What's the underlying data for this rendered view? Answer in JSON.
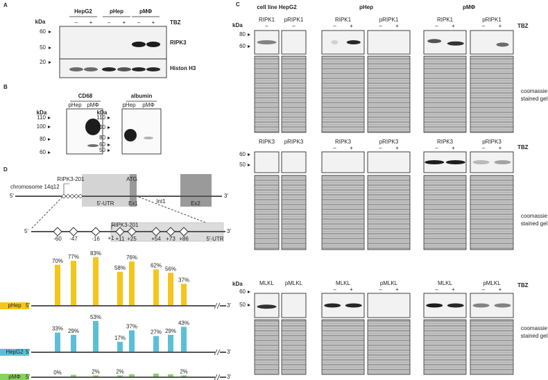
{
  "panel_a": {
    "label": "A",
    "kda": "kDa",
    "groups": [
      "HepG2",
      "pHep",
      "pMΦ"
    ],
    "signs": [
      "–",
      "+",
      "–",
      "+",
      "–",
      "+"
    ],
    "tbz": "TBZ",
    "blots": [
      {
        "name": "RIPK3",
        "markers": [
          "60",
          "50"
        ]
      },
      {
        "name": "Histon H3",
        "markers": [
          "20"
        ]
      }
    ]
  },
  "panel_b": {
    "label": "B",
    "blots": [
      {
        "title": "CD68",
        "lanes": [
          "pHep",
          "pMΦ"
        ],
        "kda": "kDa",
        "markers": [
          "110",
          "100",
          "80",
          "60"
        ]
      },
      {
        "title": "albumin",
        "lanes": [
          "pHep",
          "pMΦ"
        ],
        "kda": "kDa",
        "markers": [
          "110",
          "100",
          "80",
          "60",
          "50"
        ]
      }
    ]
  },
  "panel_c": {
    "label": "C",
    "groups": [
      "cell line HepG2",
      "pHep",
      "pMΦ"
    ],
    "tbz": "TBZ",
    "gel": [
      "coomassie",
      "stained gel"
    ],
    "rows": [
      {
        "kda": "kDa",
        "markers": [
          "80",
          "60"
        ],
        "blots": [
          {
            "name": "RIPK1",
            "signs": [
              "–"
            ]
          },
          {
            "name": "pRIPK1",
            "signs": [
              "–"
            ]
          },
          {
            "name": "RIPK1",
            "signs": [
              "–",
              "+"
            ]
          },
          {
            "name": "pRIPK1",
            "signs": [
              "–",
              "+"
            ]
          },
          {
            "name": "RIPK1",
            "signs": [
              "–",
              "+"
            ]
          },
          {
            "name": "pRIPK1",
            "signs": [
              "–",
              "+"
            ]
          }
        ]
      },
      {
        "markers": [
          "60",
          "50"
        ],
        "blots": [
          {
            "name": "RIPK3",
            "signs": []
          },
          {
            "name": "pRIPK3",
            "signs": []
          },
          {
            "name": "RIPK3",
            "signs": [
              "–",
              "+"
            ]
          },
          {
            "name": "pRIPK3",
            "signs": [
              "–",
              "+"
            ]
          },
          {
            "name": "RIPK3",
            "signs": [
              "–",
              "+"
            ]
          },
          {
            "name": "pRIPK3",
            "signs": [
              "–",
              "+"
            ]
          }
        ]
      },
      {
        "kda": "kDa",
        "markers": [
          "60",
          "50"
        ],
        "blots": [
          {
            "name": "MLKL",
            "signs": []
          },
          {
            "name": "pMLKL",
            "signs": []
          },
          {
            "name": "MLKL",
            "signs": [
              "–",
              "+"
            ]
          },
          {
            "name": "pMLKL",
            "signs": [
              "–",
              "+"
            ]
          },
          {
            "name": "MLKL",
            "signs": [
              "–",
              "+"
            ]
          },
          {
            "name": "pMLKL",
            "signs": [
              "–",
              "+"
            ]
          }
        ]
      }
    ]
  },
  "panel_d": {
    "label": "D",
    "gene": {
      "chromosome": "chromosome 14q12",
      "five": "5'",
      "three": "3'",
      "transcript": "RIPK3-201",
      "utr": "5'-UTR",
      "atg": "ATG",
      "ex1": "Ex1",
      "int1": "Int1",
      "ex2": "Ex2"
    },
    "zoom": {
      "transcript": "RIPK3-201",
      "utr": "5'-UTR",
      "tss": "+1"
    },
    "methylation": {
      "type": "bar",
      "categories": [
        "-60",
        "-47",
        "-16",
        "+11",
        "+25",
        "+54",
        "+73",
        "+86"
      ],
      "series": [
        {
          "name": "pHep",
          "color": "#f6c51c",
          "values": [
            70,
            77,
            83,
            58,
            76,
            62,
            56,
            37
          ],
          "value_labels": [
            "70%",
            "77%",
            "83%",
            "58%",
            "76%",
            "62%",
            "56%",
            "37%"
          ]
        },
        {
          "name": "HepG2",
          "color": "#5cbfd9",
          "values": [
            33,
            29,
            53,
            17,
            37,
            27,
            29,
            43
          ],
          "value_labels": [
            "33%",
            "29%",
            "53%",
            "17%",
            "37%",
            "27%",
            "29%",
            "43%"
          ]
        },
        {
          "name": "pMΦ",
          "color": "#84d45e",
          "values": [
            0,
            3,
            2,
            2,
            4,
            5,
            4,
            2
          ],
          "value_labels": [
            "0%",
            null,
            "2%",
            "2%",
            null,
            null,
            null,
            "2%"
          ]
        }
      ]
    }
  }
}
